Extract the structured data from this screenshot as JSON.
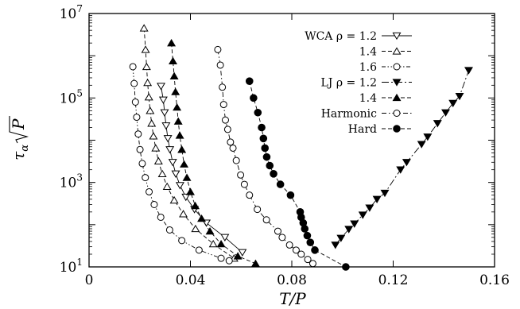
{
  "chart_data": {
    "type": "scatter",
    "title": "",
    "xlabel": "T/P",
    "ylabel": "τ_α √P",
    "xlim": [
      0,
      0.16
    ],
    "ylim": [
      10,
      10000000
    ],
    "yscale": "log",
    "grid": false,
    "legend_position": "top-right",
    "x_ticks": [
      {
        "value": 0,
        "label": "0"
      },
      {
        "value": 0.04,
        "label": "0.04"
      },
      {
        "value": 0.08,
        "label": "0.08"
      },
      {
        "value": 0.12,
        "label": "0.12"
      },
      {
        "value": 0.16,
        "label": "0.16"
      }
    ],
    "y_ticks": [
      {
        "value": 10,
        "base": "10",
        "exp": "1"
      },
      {
        "value": 1000,
        "base": "10",
        "exp": "3"
      },
      {
        "value": 100000,
        "base": "10",
        "exp": "5"
      },
      {
        "value": 10000000,
        "base": "10",
        "exp": "7"
      }
    ],
    "series": [
      {
        "name": "WCA ρ = 1.2",
        "legend_label": "WCA ρ = 1.2",
        "marker": "triangle-down-open",
        "dash": "solid",
        "x": [
          0.0284,
          0.0293,
          0.0298,
          0.0304,
          0.0311,
          0.0319,
          0.033,
          0.0342,
          0.0359,
          0.0382,
          0.0416,
          0.0463,
          0.0536,
          0.0605
        ],
        "y": [
          190000,
          90000,
          45000,
          22000,
          11000,
          6000,
          3000,
          1600,
          850,
          450,
          230,
          110,
          50,
          22
        ]
      },
      {
        "name": "1.4",
        "legend_label": "1.4",
        "marker": "triangle-up-open",
        "dash": "dashed",
        "x": [
          0.0217,
          0.0223,
          0.0227,
          0.0231,
          0.0236,
          0.0241,
          0.0247,
          0.0254,
          0.0263,
          0.0274,
          0.0289,
          0.0308,
          0.0336,
          0.0372,
          0.042,
          0.049,
          0.0572
        ],
        "y": [
          4500000,
          1400000,
          550000,
          230000,
          105000,
          50000,
          25000,
          12500,
          6500,
          3200,
          1600,
          800,
          380,
          180,
          80,
          35,
          16
        ]
      },
      {
        "name": "1.6",
        "legend_label": "1.6",
        "marker": "circle-open",
        "dash": "dash-dot-dot",
        "x": [
          0.0173,
          0.0178,
          0.0183,
          0.0188,
          0.0194,
          0.0201,
          0.021,
          0.0222,
          0.0237,
          0.0257,
          0.0283,
          0.0318,
          0.0366,
          0.0434,
          0.0521,
          0.0553
        ],
        "y": [
          550000,
          220000,
          80000,
          35000,
          14000,
          6000,
          2800,
          1300,
          600,
          300,
          150,
          75,
          42,
          25,
          16,
          14
        ]
      },
      {
        "name": "LJ ρ = 1.2",
        "legend_label": "LJ ρ = 1.2",
        "marker": "triangle-down-filled",
        "dash": "long-dash-dot",
        "x": [
          0.0972,
          0.0994,
          0.1025,
          0.1047,
          0.108,
          0.1107,
          0.1136,
          0.1167,
          0.1229,
          0.1253,
          0.1312,
          0.1336,
          0.1375,
          0.1407,
          0.1436,
          0.1462,
          0.1498
        ],
        "y": [
          33,
          48,
          78,
          105,
          170,
          250,
          400,
          560,
          2000,
          3000,
          8000,
          12000,
          25000,
          45000,
          75000,
          110000,
          450000
        ]
      },
      {
        "name": "1.4",
        "legend_label": "1.4",
        "marker": "triangle-up-filled",
        "dash": "dashed",
        "x": [
          0.0325,
          0.0331,
          0.0336,
          0.0341,
          0.0347,
          0.0352,
          0.0358,
          0.0366,
          0.0375,
          0.0386,
          0.04,
          0.0419,
          0.0444,
          0.0477,
          0.0521,
          0.0587,
          0.0657
        ],
        "y": [
          2000000,
          750000,
          330000,
          140000,
          60000,
          28000,
          13000,
          6000,
          2700,
          1300,
          600,
          280,
          140,
          70,
          35,
          18,
          12
        ]
      },
      {
        "name": "Harmonic",
        "legend_label": "Harmonic",
        "marker": "circle-open",
        "dash": "dash-dot",
        "x": [
          0.0508,
          0.0518,
          0.0526,
          0.0531,
          0.0538,
          0.0547,
          0.0558,
          0.0568,
          0.0581,
          0.0598,
          0.0613,
          0.0633,
          0.0664,
          0.07,
          0.0745,
          0.0762,
          0.0791,
          0.0817,
          0.0837,
          0.0863,
          0.0883
        ],
        "y": [
          1400000,
          600000,
          180000,
          70000,
          30000,
          18000,
          9000,
          6500,
          3300,
          1500,
          900,
          500,
          230,
          130,
          70,
          50,
          33,
          25,
          20,
          15,
          12
        ]
      },
      {
        "name": "Hard",
        "legend_label": "Hard",
        "marker": "circle-filled",
        "dash": "dashed",
        "x": [
          0.0633,
          0.0649,
          0.0666,
          0.0681,
          0.0688,
          0.0694,
          0.0701,
          0.0713,
          0.0728,
          0.0755,
          0.0795,
          0.0833,
          0.0837,
          0.0845,
          0.0851,
          0.0861,
          0.0873,
          0.0891,
          0.1013
        ],
        "y": [
          250000,
          100000,
          45000,
          20000,
          11000,
          6500,
          4000,
          2500,
          1600,
          900,
          500,
          200,
          150,
          110,
          80,
          55,
          38,
          25,
          10
        ]
      }
    ]
  }
}
